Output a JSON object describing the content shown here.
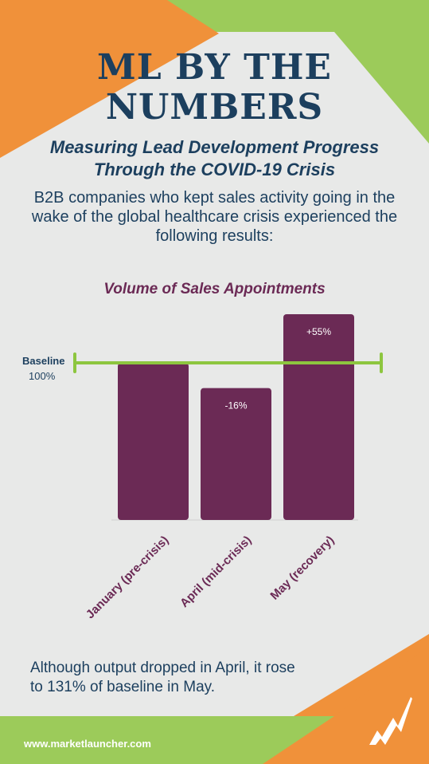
{
  "header": {
    "title_line1": "ML BY THE",
    "title_line2": "NUMBERS"
  },
  "subtitle": "Measuring Lead Development Progress Through the COVID-19 Crisis",
  "intro": "B2B companies who kept sales activity going in the wake of the global healthcare crisis experienced the following results:",
  "baseline": {
    "label": "Baseline",
    "value": "100%"
  },
  "chart_data": {
    "type": "bar",
    "title": "Volume of Sales Appointments",
    "categories": [
      "January (pre-crisis)",
      "April (mid-crisis)",
      "May (recovery)"
    ],
    "values": [
      100,
      84,
      131
    ],
    "data_labels": [
      "",
      "-16%",
      "+55%"
    ],
    "baseline": 100,
    "ylim": [
      0,
      131
    ],
    "grid": false,
    "colors": {
      "bar": "#6b2a55",
      "baseline": "#8dc63f",
      "label": "#ffffff"
    }
  },
  "conclusion": "Although output dropped in April, it rose to 131% of baseline in May.",
  "footer": {
    "url": "www.marketlauncher.com"
  },
  "colors": {
    "navy": "#1c3f5e",
    "purple": "#6b2a55",
    "orange": "#f0913a",
    "green": "#9ccb5a",
    "background": "#e8e9e8"
  },
  "logo_icon": "marketlauncher-logo-icon"
}
